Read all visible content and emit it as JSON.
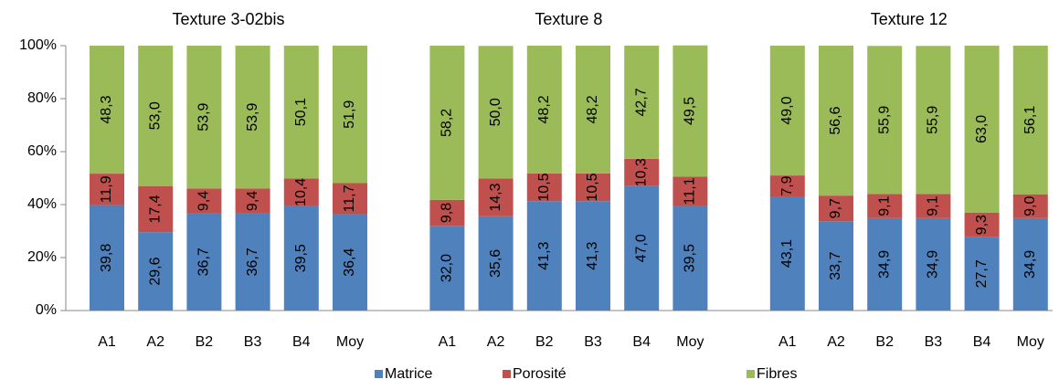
{
  "chart_data": {
    "type": "bar",
    "stacked": true,
    "ylim": [
      0,
      100
    ],
    "yticks": [
      {
        "value": 0,
        "label": "0%"
      },
      {
        "value": 20,
        "label": "20%"
      },
      {
        "value": 40,
        "label": "40%"
      },
      {
        "value": 60,
        "label": "60%"
      },
      {
        "value": 80,
        "label": "80%"
      },
      {
        "value": 100,
        "label": "100%"
      }
    ],
    "legend": [
      {
        "name": "Matrice",
        "color": "#4f81bd"
      },
      {
        "name": "Porosité",
        "color": "#c0504d"
      },
      {
        "name": "Fibres",
        "color": "#9bbb59"
      }
    ],
    "groups": [
      {
        "title": "Texture 3-02bis",
        "categories": [
          "A1",
          "A2",
          "B2",
          "B3",
          "B4",
          "Moy"
        ],
        "series": [
          {
            "values": [
              39.8,
              29.6,
              36.7,
              36.7,
              39.5,
              36.4
            ],
            "value_labels": [
              "39,8",
              "29,6",
              "36,7",
              "36,7",
              "39,5",
              "36,4"
            ]
          },
          {
            "values": [
              11.9,
              17.4,
              9.4,
              9.4,
              10.4,
              11.7
            ],
            "value_labels": [
              "11,9",
              "17,4",
              "9,4",
              "9,4",
              "10,4",
              "11,7"
            ]
          },
          {
            "values": [
              48.3,
              53.0,
              53.9,
              53.9,
              50.1,
              51.9
            ],
            "value_labels": [
              "48,3",
              "53,0",
              "53,9",
              "53,9",
              "50,1",
              "51,9"
            ]
          }
        ]
      },
      {
        "title": "Texture 8",
        "categories": [
          "A1",
          "A2",
          "B2",
          "B3",
          "B4",
          "Moy"
        ],
        "series": [
          {
            "values": [
              32.0,
              35.6,
              41.3,
              41.3,
              47.0,
              39.5
            ],
            "value_labels": [
              "32,0",
              "35,6",
              "41,3",
              "41,3",
              "47,0",
              "39,5"
            ]
          },
          {
            "values": [
              9.8,
              14.3,
              10.5,
              10.5,
              10.3,
              11.1
            ],
            "value_labels": [
              "9,8",
              "14,3",
              "10,5",
              "10,5",
              "10,3",
              "11,1"
            ]
          },
          {
            "values": [
              58.2,
              50.0,
              48.2,
              48.2,
              42.7,
              49.5
            ],
            "value_labels": [
              "58,2",
              "50,0",
              "48,2",
              "48,2",
              "42,7",
              "49,5"
            ]
          }
        ]
      },
      {
        "title": "Texture 12",
        "categories": [
          "A1",
          "A2",
          "B2",
          "B3",
          "B4",
          "Moy"
        ],
        "series": [
          {
            "values": [
              43.1,
              33.7,
              34.9,
              34.9,
              27.7,
              34.9
            ],
            "value_labels": [
              "43,1",
              "33,7",
              "34,9",
              "34,9",
              "27,7",
              "34,9"
            ]
          },
          {
            "values": [
              7.9,
              9.7,
              9.1,
              9.1,
              9.3,
              9.0
            ],
            "value_labels": [
              "7,9",
              "9,7",
              "9,1",
              "9,1",
              "9,3",
              "9,0"
            ]
          },
          {
            "values": [
              49.0,
              56.6,
              55.9,
              55.9,
              63.0,
              56.1
            ],
            "value_labels": [
              "49,0",
              "56,6",
              "55,9",
              "55,9",
              "63,0",
              "56,1"
            ]
          }
        ]
      }
    ]
  }
}
